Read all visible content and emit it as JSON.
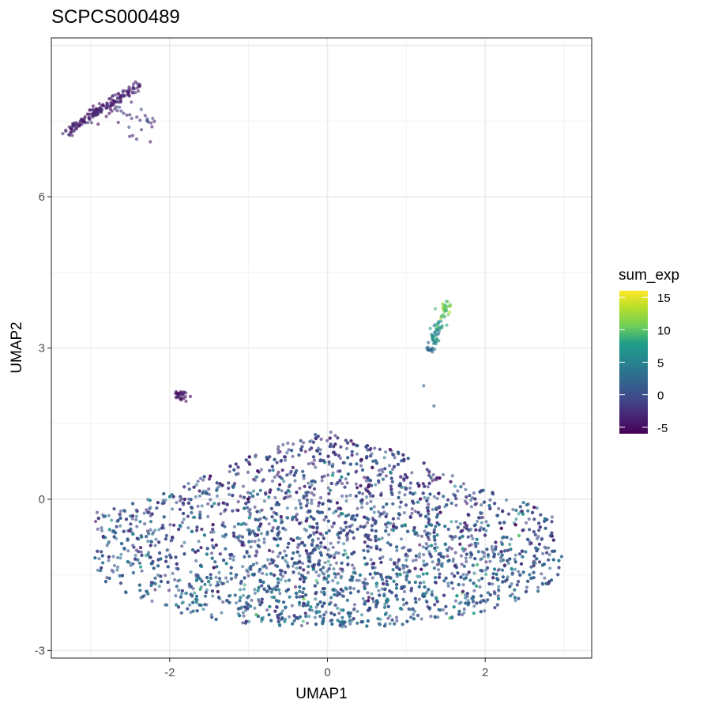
{
  "chart_data": {
    "type": "scatter",
    "title": "SCPCS000489",
    "xlabel": "UMAP1",
    "ylabel": "UMAP2",
    "xlim": [
      -3.5,
      3.35
    ],
    "ylim": [
      -3.15,
      9.15
    ],
    "x_ticks": [
      {
        "value": -2,
        "label": "-2"
      },
      {
        "value": 0,
        "label": "0"
      },
      {
        "value": 2,
        "label": "2"
      }
    ],
    "y_ticks": [
      {
        "value": -3,
        "label": "-3"
      },
      {
        "value": 0,
        "label": "0"
      },
      {
        "value": 3,
        "label": "3"
      },
      {
        "value": 6,
        "label": "6"
      }
    ],
    "grid": true,
    "legend": {
      "title": "sum_exp",
      "position": "right",
      "type": "colorbar",
      "colormap": "viridis",
      "range": [
        -6,
        16
      ],
      "ticks": [
        {
          "value": 15,
          "label": "15"
        },
        {
          "value": 10,
          "label": "10"
        },
        {
          "value": 5,
          "label": "5"
        },
        {
          "value": 0,
          "label": "0"
        },
        {
          "value": -5,
          "label": "-5"
        }
      ]
    },
    "colors": {
      "low": "#440154",
      "mid_low": "#3b528b",
      "mid": "#21918c",
      "mid_high": "#5ec962",
      "high": "#fde725"
    },
    "clusters": [
      {
        "description_key": "main",
        "x_range": [
          -2.95,
          3.0
        ],
        "y_range": [
          -2.55,
          1.9
        ],
        "sum_exp_typical": [
          -5,
          8
        ],
        "approx_points": 4200
      },
      {
        "description_key": "upper_left_band",
        "x_from": -3.3,
        "y_from": 7.3,
        "x_to": -2.4,
        "y_to": 8.2,
        "sum_exp_typical": [
          -6,
          -2
        ],
        "approx_points": 180
      },
      {
        "description_key": "right_streak",
        "x_range": [
          1.2,
          1.5
        ],
        "y_range": [
          2.9,
          3.9
        ],
        "sum_exp_typical": [
          0,
          14
        ],
        "approx_points": 90
      },
      {
        "description_key": "small_blob",
        "x_center": -1.85,
        "y_center": 2.05,
        "sum_exp_typical": [
          -6,
          -3
        ],
        "approx_points": 30
      }
    ]
  }
}
